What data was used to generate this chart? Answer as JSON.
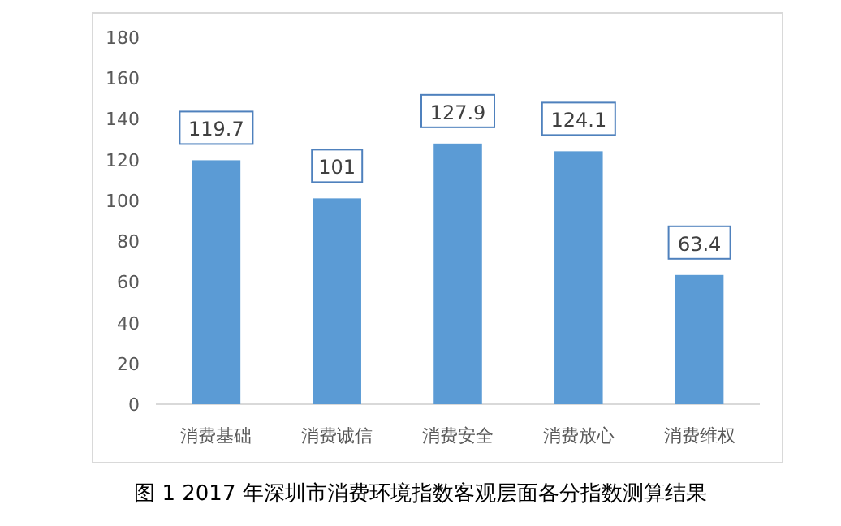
{
  "chart_data": {
    "type": "bar",
    "categories": [
      "消费基础",
      "消费诚信",
      "消费安全",
      "消费放心",
      "消费维权"
    ],
    "values": [
      119.7,
      101,
      127.9,
      124.1,
      63.4
    ],
    "color": "#5b9bd5",
    "ylim": [
      0,
      180
    ],
    "yticks": [
      0,
      20,
      40,
      60,
      80,
      100,
      120,
      140,
      160,
      180
    ],
    "data_labels": true,
    "annotations": [
      "图 1   2017 年深圳市消费环境指数客观层面各分指数测算结果"
    ]
  }
}
